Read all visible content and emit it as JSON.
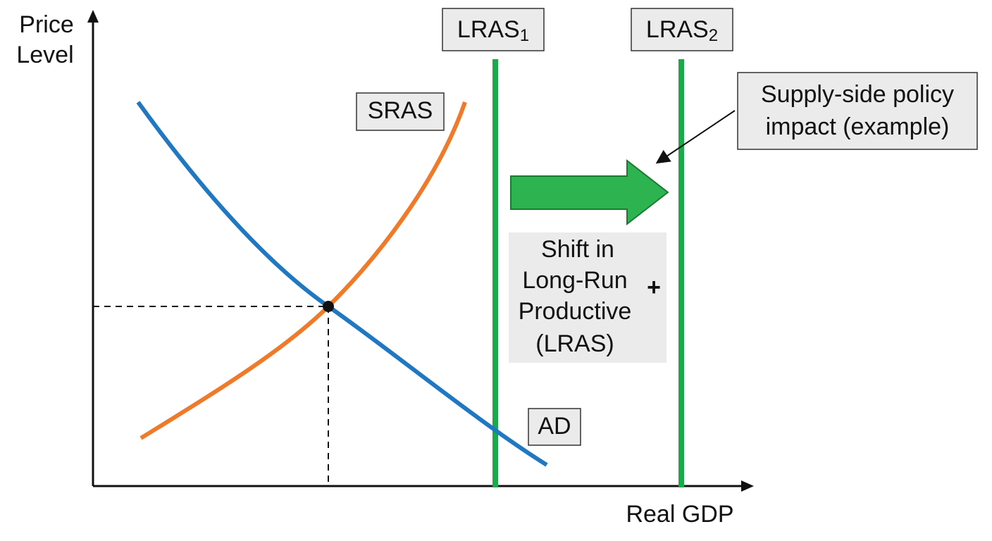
{
  "axes": {
    "y_label": [
      "Price",
      "Level"
    ],
    "x_label": "Real GDP"
  },
  "curves": [
    {
      "label": "SRAS"
    },
    {
      "label": "AD"
    }
  ],
  "lras": [
    {
      "label": "LRAS",
      "subscript": "1"
    },
    {
      "label": "LRAS",
      "subscript": "2"
    }
  ],
  "callout": {
    "lines": [
      "Supply-side policy",
      "impact (example)"
    ]
  },
  "shift_box": {
    "lines": [
      "Shift in",
      "Long-Run",
      "Productive",
      "(LRAS)"
    ],
    "symbol": "+"
  }
}
